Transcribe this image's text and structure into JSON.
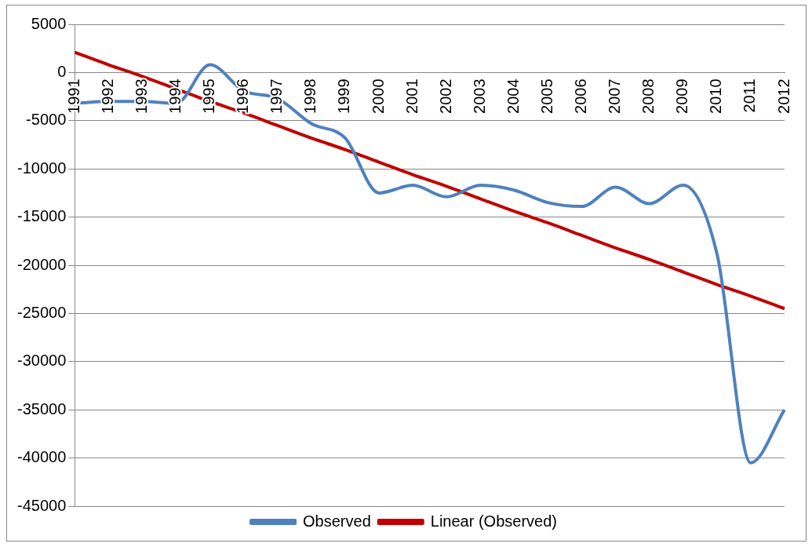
{
  "chart_data": {
    "type": "line",
    "categories": [
      "1991",
      "1992",
      "1993",
      "1994",
      "1995",
      "1996",
      "1997",
      "1998",
      "1999",
      "2000",
      "2001",
      "2002",
      "2003",
      "2004",
      "2005",
      "2006",
      "2007",
      "2008",
      "2009",
      "2010",
      "2011",
      "2012"
    ],
    "series": [
      {
        "name": "Observed",
        "color": "#4f81bd",
        "values": [
          -3200,
          -3000,
          -3000,
          -3200,
          800,
          -1900,
          -2700,
          -5300,
          -6800,
          -12500,
          -11700,
          -12900,
          -11700,
          -12200,
          -13500,
          -13900,
          -11900,
          -13600,
          -11700,
          -18800,
          -40500,
          -35000
        ]
      },
      {
        "name": "Linear (Observed)",
        "color": "#c00000",
        "values": [
          2100,
          800,
          -400,
          -1700,
          -3000,
          -4200,
          -5500,
          -6800,
          -8000,
          -9300,
          -10600,
          -11800,
          -13100,
          -14400,
          -15600,
          -16900,
          -18200,
          -19400,
          -20700,
          -22000,
          -23200,
          -24500
        ]
      }
    ],
    "ylim": [
      -45000,
      5000
    ],
    "yticks": [
      -45000,
      -40000,
      -35000,
      -30000,
      -25000,
      -20000,
      -15000,
      -10000,
      -5000,
      0,
      5000
    ],
    "grid": "y",
    "legend": "bottom",
    "marker": "none",
    "line_style": "solid"
  }
}
